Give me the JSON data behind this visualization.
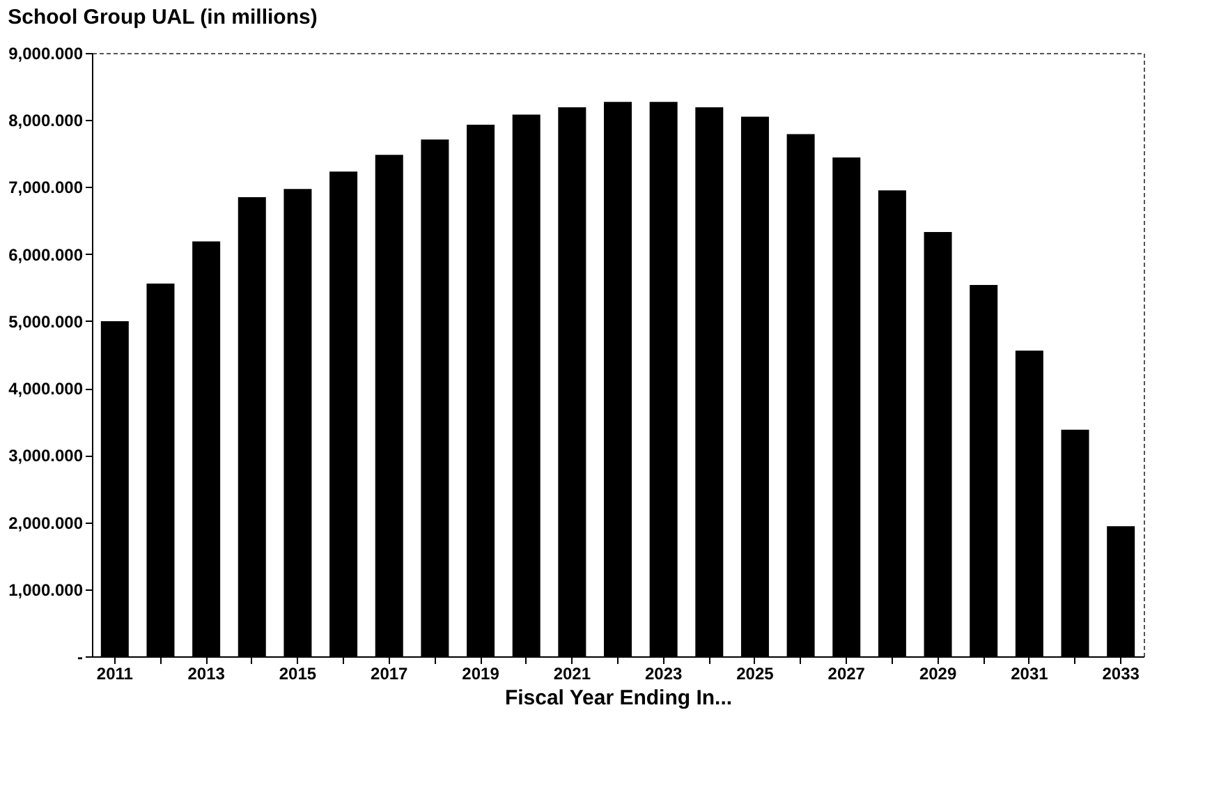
{
  "chart_data": {
    "type": "bar",
    "title": "School Group UAL (in millions)",
    "xlabel": "Fiscal Year Ending In...",
    "categories": [
      "2011",
      null,
      "2013",
      null,
      "2015",
      null,
      "2017",
      null,
      "2019",
      null,
      "2021",
      null,
      "2023",
      null,
      "2025",
      null,
      "2027",
      null,
      "2029",
      null,
      "2031",
      null,
      "2033"
    ],
    "values": [
      5000,
      5560,
      6190,
      6850,
      6970,
      7230,
      7480,
      7710,
      7930,
      8080,
      8190,
      8270,
      8270,
      8190,
      8050,
      7790,
      7440,
      6950,
      6330,
      5540,
      4560,
      3380,
      1940
    ],
    "color": "#000000",
    "ylim": [
      0,
      9000
    ],
    "yticks": [
      {
        "value": 0,
        "label": "-"
      },
      {
        "value": 1000,
        "label": "1,000.000"
      },
      {
        "value": 2000,
        "label": "2,000.000"
      },
      {
        "value": 3000,
        "label": "3,000.000"
      },
      {
        "value": 4000,
        "label": "4,000.000"
      },
      {
        "value": 5000,
        "label": "5,000.000"
      },
      {
        "value": 6000,
        "label": "6,000.000"
      },
      {
        "value": 7000,
        "label": "7,000.000"
      },
      {
        "value": 8000,
        "label": "8,000.000"
      },
      {
        "value": 9000,
        "label": "9,000.000"
      }
    ],
    "grid": false
  }
}
